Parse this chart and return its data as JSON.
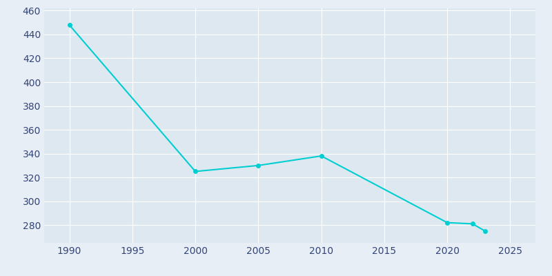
{
  "years": [
    1990,
    2000,
    2005,
    2010,
    2020,
    2022,
    2023
  ],
  "population": [
    448,
    325,
    330,
    338,
    282,
    281,
    275
  ],
  "line_color": "#00CED1",
  "marker_color": "#00CED1",
  "plot_bg_color": "#dde8f0",
  "figure_bg_color": "#e8eef5",
  "grid_color": "#ffffff",
  "tick_label_color": "#334477",
  "ylim": [
    265,
    462
  ],
  "xlim": [
    1988,
    2027
  ],
  "yticks": [
    280,
    300,
    320,
    340,
    360,
    380,
    400,
    420,
    440,
    460
  ],
  "xticks": [
    1990,
    1995,
    2000,
    2005,
    2010,
    2015,
    2020,
    2025
  ]
}
